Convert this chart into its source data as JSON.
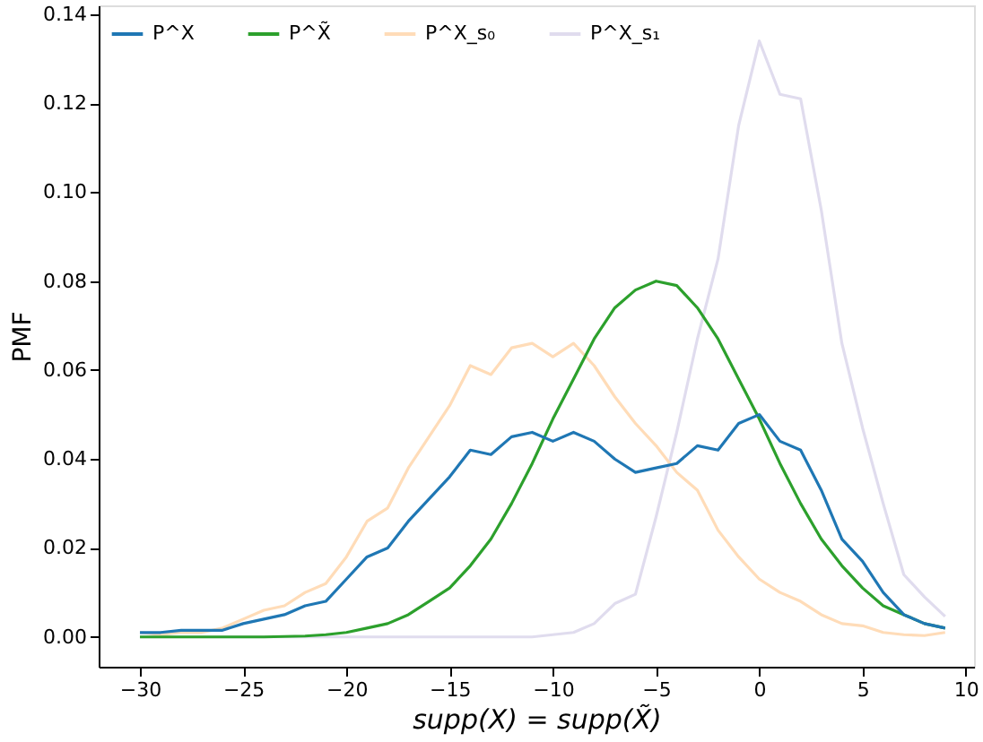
{
  "chart_data": {
    "type": "line",
    "xlabel": "supp(X) = supp(X̃)",
    "ylabel": "PMF",
    "x": [
      -30,
      -29,
      -28,
      -27,
      -26,
      -25,
      -24,
      -23,
      -22,
      -21,
      -20,
      -19,
      -18,
      -17,
      -16,
      -15,
      -14,
      -13,
      -12,
      -11,
      -10,
      -9,
      -8,
      -7,
      -6,
      -5,
      -4,
      -3,
      -2,
      -1,
      0,
      1,
      2,
      3,
      4,
      5,
      6,
      7,
      8,
      9
    ],
    "series": [
      {
        "name": "P^X",
        "color": "#1f77b4",
        "values": [
          0.001,
          0.001,
          0.0015,
          0.0015,
          0.0015,
          0.003,
          0.004,
          0.005,
          0.007,
          0.008,
          0.013,
          0.018,
          0.02,
          0.026,
          0.031,
          0.036,
          0.042,
          0.041,
          0.045,
          0.046,
          0.044,
          0.046,
          0.044,
          0.04,
          0.037,
          0.038,
          0.039,
          0.043,
          0.042,
          0.048,
          0.05,
          0.044,
          0.042,
          0.033,
          0.022,
          0.017,
          0.01,
          0.005,
          0.003,
          0.002
        ]
      },
      {
        "name": "P^X̃",
        "color": "#2ca02c",
        "values": [
          0,
          0,
          0,
          0,
          0,
          0,
          0,
          0.0001,
          0.0002,
          0.0005,
          0.001,
          0.002,
          0.003,
          0.005,
          0.008,
          0.011,
          0.016,
          0.022,
          0.03,
          0.039,
          0.049,
          0.058,
          0.067,
          0.074,
          0.078,
          0.08,
          0.079,
          0.074,
          0.067,
          0.058,
          0.049,
          0.039,
          0.03,
          0.022,
          0.016,
          0.011,
          0.007,
          0.005,
          0.003,
          0.002
        ]
      },
      {
        "name": "P^X_s₀",
        "color": "#ffdcb8",
        "values": [
          0.001,
          0.0005,
          0.001,
          0.001,
          0.002,
          0.004,
          0.006,
          0.007,
          0.01,
          0.012,
          0.018,
          0.026,
          0.029,
          0.038,
          0.045,
          0.052,
          0.061,
          0.059,
          0.065,
          0.066,
          0.063,
          0.066,
          0.061,
          0.054,
          0.048,
          0.043,
          0.037,
          0.033,
          0.024,
          0.018,
          0.013,
          0.01,
          0.008,
          0.005,
          0.003,
          0.0025,
          0.001,
          0.0005,
          0.0003,
          0.001
        ]
      },
      {
        "name": "P^X_s₁",
        "color": "#e0dcee",
        "values": [
          0,
          0,
          0,
          0,
          0,
          0,
          0,
          0,
          0,
          0,
          0,
          0,
          0,
          0,
          0,
          0,
          0,
          0,
          0,
          0,
          0.0005,
          0.001,
          0.003,
          0.0075,
          0.0096,
          0.027,
          0.046,
          0.067,
          0.085,
          0.115,
          0.134,
          0.122,
          0.121,
          0.096,
          0.066,
          0.047,
          0.03,
          0.014,
          0.009,
          0.0046
        ]
      }
    ],
    "xlim": [
      -32,
      10.4
    ],
    "xticks": [
      -30,
      -25,
      -20,
      -15,
      -10,
      -5,
      0,
      5,
      10
    ],
    "ylim": [
      -0.0067,
      0.142
    ],
    "yticks": [
      {
        "value": 0,
        "label": "0.00"
      },
      {
        "value": 0.02,
        "label": "0.02"
      },
      {
        "value": 0.04,
        "label": "0.04"
      },
      {
        "value": 0.06,
        "label": "0.06"
      },
      {
        "value": 0.08,
        "label": "0.08"
      },
      {
        "value": 0.1,
        "label": "0.10"
      },
      {
        "value": 0.12,
        "label": "0.12"
      },
      {
        "value": 0.14,
        "label": "0.14"
      }
    ],
    "grid": false,
    "legend": "top left",
    "line_style": "solid",
    "marker": "none"
  }
}
